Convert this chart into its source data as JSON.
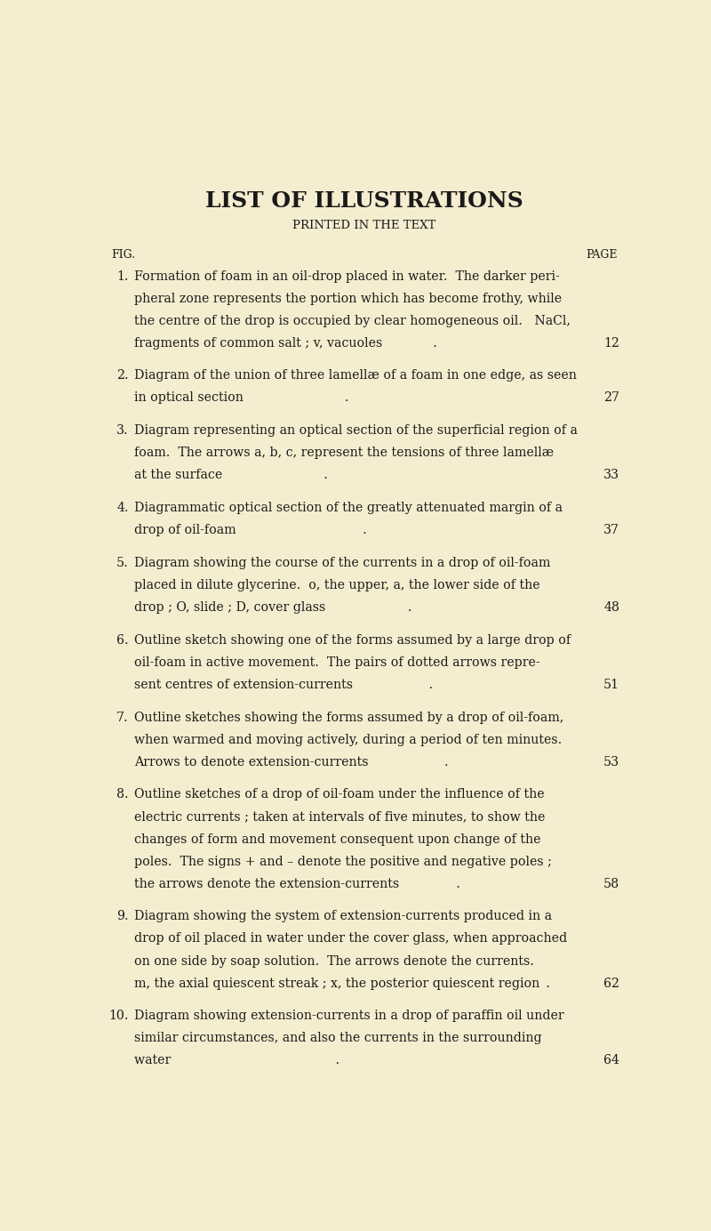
{
  "background_color": "#f5edcf",
  "text_color": "#1a1a1a",
  "title": "LIST OF ILLUSTRATIONS",
  "subtitle": "PRINTED IN THE TEXT",
  "fig_label": "FIG.",
  "page_label": "PAGE",
  "entries": [
    {
      "num": "1.",
      "lines": [
        "Formation of foam in an oil-drop placed in water.  The darker peri-",
        "pheral zone represents the portion which has become frothy, while",
        "the centre of the drop is occupied by clear homogeneous oil.   NaCl,",
        "fragments of common salt ; v, vacuoles        ."
      ],
      "page": "12"
    },
    {
      "num": "2.",
      "lines": [
        "Diagram of the union of three lamellæ of a foam in one edge, as seen",
        "in optical section                ."
      ],
      "page": "27"
    },
    {
      "num": "3.",
      "lines": [
        "Diagram representing an optical section of the superficial region of a",
        "foam.  The arrows a, b, c, represent the tensions of three lamellæ",
        "at the surface                ."
      ],
      "page": "33"
    },
    {
      "num": "4.",
      "lines": [
        "Diagrammatic optical section of the greatly attenuated margin of a",
        "drop of oil-foam                    ."
      ],
      "page": "37"
    },
    {
      "num": "5.",
      "lines": [
        "Diagram showing the course of the currents in a drop of oil-foam",
        "placed in dilute glycerine.  o, the upper, a, the lower side of the",
        "drop ; O, slide ; D, cover glass             ."
      ],
      "page": "48"
    },
    {
      "num": "6.",
      "lines": [
        "Outline sketch showing one of the forms assumed by a large drop of",
        "oil-foam in active movement.  The pairs of dotted arrows repre-",
        "sent centres of extension-currents            ."
      ],
      "page": "51"
    },
    {
      "num": "7.",
      "lines": [
        "Outline sketches showing the forms assumed by a drop of oil-foam,",
        "when warmed and moving actively, during a period of ten minutes.",
        "Arrows to denote extension-currents            ."
      ],
      "page": "53"
    },
    {
      "num": "8.",
      "lines": [
        "Outline sketches of a drop of oil-foam under the influence of the",
        "electric currents ; taken at intervals of five minutes, to show the",
        "changes of form and movement consequent upon change of the",
        "poles.  The signs + and – denote the positive and negative poles ;",
        "the arrows denote the extension-currents         ."
      ],
      "page": "58"
    },
    {
      "num": "9.",
      "lines": [
        "Diagram showing the system of extension-currents produced in a",
        "drop of oil placed in water under the cover glass, when approached",
        "on one side by soap solution.  The arrows denote the currents.",
        "m, the axial quiescent streak ; x, the posterior quiescent region ."
      ],
      "page": "62"
    },
    {
      "num": "10.",
      "lines": [
        "Diagram showing extension-currents in a drop of paraffin oil under",
        "similar circumstances, and also the currents in the surrounding",
        "water                          ."
      ],
      "page": "64"
    }
  ],
  "title_fontsize": 18,
  "subtitle_fontsize": 9.5,
  "body_fontsize": 10.2,
  "label_fontsize": 9,
  "fig_width": 8.0,
  "fig_height": 13.84
}
